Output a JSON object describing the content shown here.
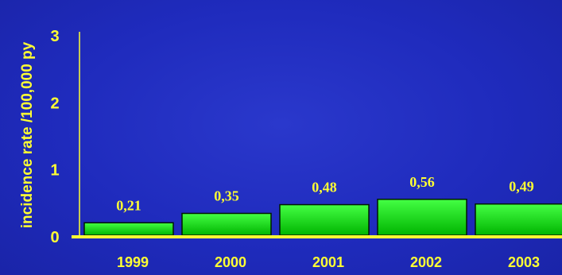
{
  "chart_data": {
    "type": "bar",
    "title": "",
    "xlabel": "",
    "ylabel": "incidence rate /100,000 py",
    "categories": [
      "1999",
      "2000",
      "2001",
      "2002",
      "2003"
    ],
    "values": [
      0.21,
      0.35,
      0.48,
      0.56,
      0.49
    ],
    "data_labels": [
      "0,21",
      "0,35",
      "0,48",
      "0,56",
      "0,49"
    ],
    "ylim": [
      0,
      3
    ],
    "yticks": [
      0,
      1,
      2,
      3
    ],
    "ytick_labels": [
      "0",
      "1",
      "2",
      "3"
    ],
    "grid": false,
    "legend": "none"
  },
  "colors": {
    "background": "#1f2bbd",
    "text": "#ffff33",
    "bar_fill_top": "#44ff44",
    "bar_fill_bottom": "#00b400",
    "bar_outline": "#001a00",
    "axis": "#ffff33"
  }
}
